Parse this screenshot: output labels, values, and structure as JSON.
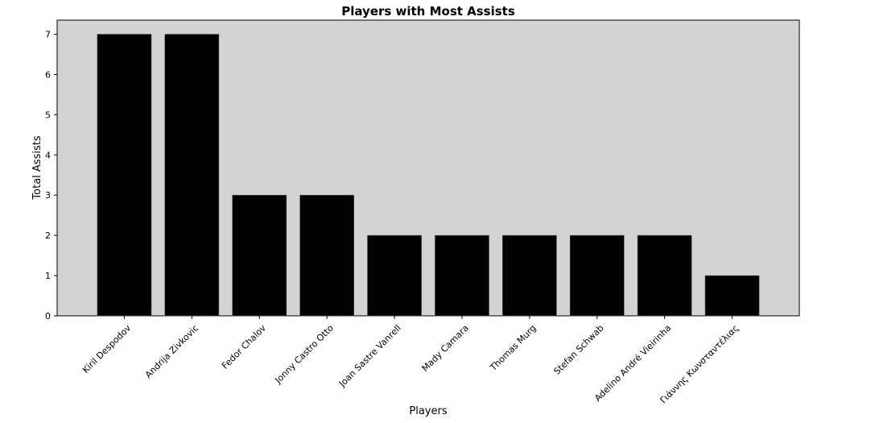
{
  "chart_data": {
    "type": "bar",
    "title": "Players with Most Assists",
    "xlabel": "Players",
    "ylabel": "Total Assists",
    "categories": [
      "Kiril Despodov",
      "Andrija Zivkovic",
      "Fedor Chalov",
      "Jonny Castro Otto",
      "Joan Sastre Vanrell",
      "Mady Camara",
      "Thomas Murg",
      "Stefan Schwab",
      "Adelino André Vieirinha",
      "Γιάννης Κωνσταντέλιας"
    ],
    "values": [
      7,
      7,
      3,
      3,
      2,
      2,
      2,
      2,
      2,
      1
    ],
    "ylim": [
      0,
      7.35
    ],
    "yticks": [
      0,
      1,
      2,
      3,
      4,
      5,
      6,
      7
    ],
    "grid": false,
    "colors": {
      "bar": "#000000",
      "plot_background": "#d3d3d3",
      "figure_background": "#ffffff"
    }
  }
}
